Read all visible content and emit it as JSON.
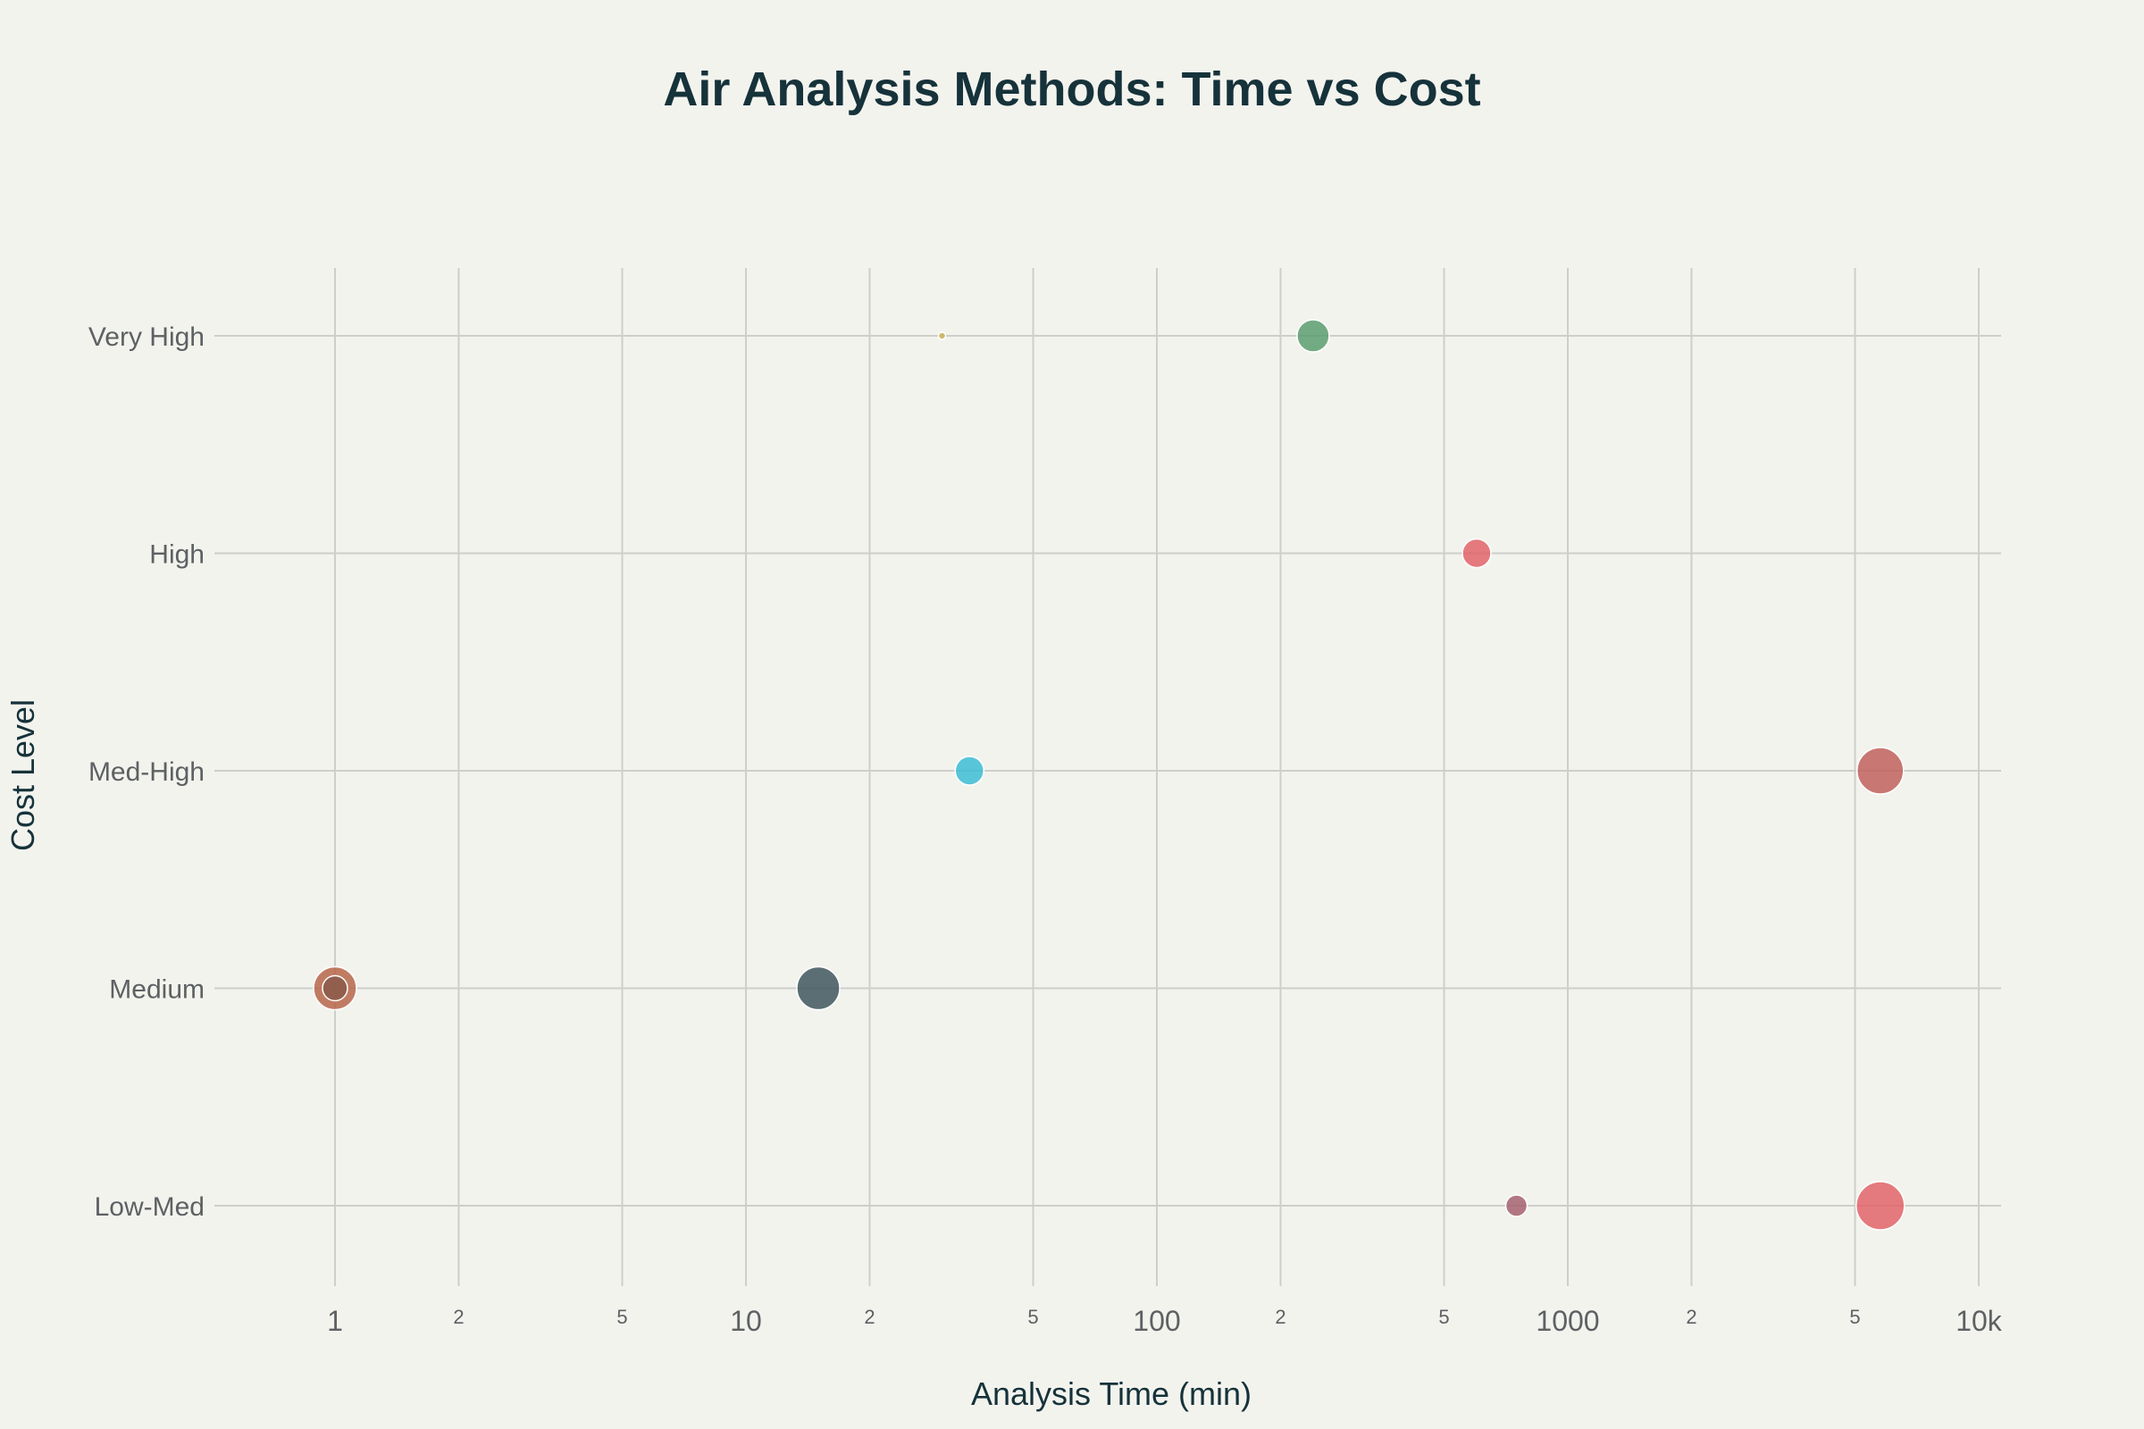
{
  "chart_data": {
    "type": "scatter",
    "title": "Air Analysis Methods: Time vs Cost",
    "xlabel": "Analysis Time (min)",
    "ylabel": "Cost Level",
    "x_scale": "log",
    "xlim": [
      0.5,
      12000
    ],
    "x_major_ticks": [
      {
        "value": 1,
        "label": "1"
      },
      {
        "value": 10,
        "label": "10"
      },
      {
        "value": 100,
        "label": "100"
      },
      {
        "value": 1000,
        "label": "1000"
      },
      {
        "value": 10000,
        "label": "10k"
      }
    ],
    "x_minor_ticks": [
      {
        "value": 2,
        "label": "2"
      },
      {
        "value": 5,
        "label": "5"
      },
      {
        "value": 20,
        "label": "2"
      },
      {
        "value": 50,
        "label": "5"
      },
      {
        "value": 200,
        "label": "2"
      },
      {
        "value": 500,
        "label": "5"
      },
      {
        "value": 2000,
        "label": "2"
      },
      {
        "value": 5000,
        "label": "5"
      }
    ],
    "categories_y": [
      "Low-Med",
      "Medium",
      "Med-High",
      "High",
      "Very High"
    ],
    "grid": true,
    "legend": "none",
    "points": [
      {
        "x": 30,
        "y": "Very High",
        "size": 4,
        "color": "#c9b25a"
      },
      {
        "x": 240,
        "y": "Very High",
        "size": 18,
        "color": "#5a9e70"
      },
      {
        "x": 600,
        "y": "High",
        "size": 16,
        "color": "#e06468"
      },
      {
        "x": 35,
        "y": "Med-High",
        "size": 16,
        "color": "#3cbcd4"
      },
      {
        "x": 5760,
        "y": "Med-High",
        "size": 26,
        "color": "#c0605c"
      },
      {
        "x": 1,
        "y": "Medium",
        "size": 24,
        "color": "#b6664a"
      },
      {
        "x": 1,
        "y": "Medium",
        "size": 14,
        "color": "#8a5a4a"
      },
      {
        "x": 15,
        "y": "Medium",
        "size": 24,
        "color": "#3e565d"
      },
      {
        "x": 750,
        "y": "Low-Med",
        "size": 12,
        "color": "#a5606e"
      },
      {
        "x": 5760,
        "y": "Low-Med",
        "size": 27,
        "color": "#e06468"
      }
    ]
  }
}
